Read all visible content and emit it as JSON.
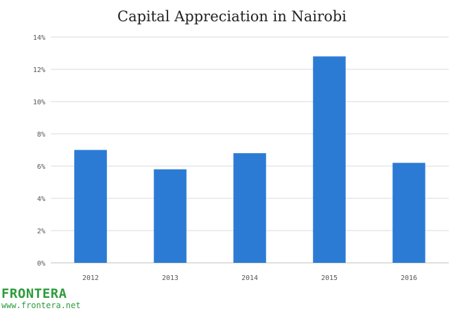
{
  "chart_data": {
    "type": "bar",
    "title": "Capital Appreciation in Nairobi",
    "categories": [
      "2012",
      "2013",
      "2014",
      "2015",
      "2016"
    ],
    "values": [
      7.0,
      5.8,
      6.8,
      12.8,
      6.2
    ],
    "ylim": [
      0,
      14
    ],
    "yticks": [
      "0%",
      "2%",
      "4%",
      "6%",
      "8%",
      "10%",
      "12%",
      "14%"
    ],
    "ytick_values": [
      0,
      2,
      4,
      6,
      8,
      10,
      12,
      14
    ],
    "xlabel": "",
    "ylabel": "",
    "grid": true,
    "bar_color": "#2b7bd4"
  },
  "logo": {
    "name": "FRONTERA",
    "url": "www.frontera.net",
    "color": "#2e9b3c"
  }
}
